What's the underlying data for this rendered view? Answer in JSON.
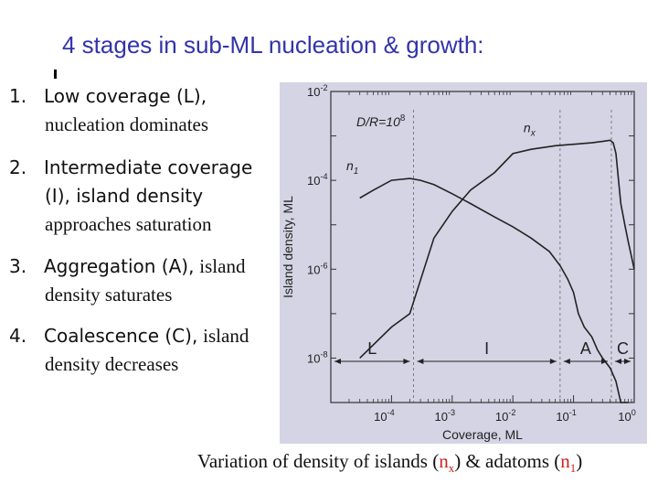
{
  "slide": {
    "title": "4 stages in sub-ML nucleation & growth:",
    "items": [
      {
        "num": "1.",
        "head": "Low coverage (L),",
        "rest": "nucleation dominates",
        "rest2": ""
      },
      {
        "num": "2.",
        "head": "Intermediate coverage",
        "rest": "(I), island density",
        "rest2": "approaches saturation"
      },
      {
        "num": "3.",
        "head": "Aggregation (A),",
        "rest": "island",
        "rest2": "density saturates"
      },
      {
        "num": "4.",
        "head": "Coalescence (C),",
        "rest": "island",
        "rest2": "density decreases"
      }
    ],
    "caption": {
      "pre": "Variation of density of islands (",
      "nx_base": "n",
      "nx_sub": "x",
      "mid": ") & adatoms (",
      "n1_base": "n",
      "n1_sub": "1",
      "post": ")"
    }
  },
  "chart_data": {
    "type": "line",
    "xlabel": "Coverage,  ML",
    "ylabel": "Island density,  ML",
    "x_scale": "log",
    "y_scale": "log",
    "xlim": [
      1e-05,
      1
    ],
    "ylim": [
      1e-09,
      0.01
    ],
    "x_ticks": [
      {
        "base": "10",
        "exp": "-4",
        "value": 0.0001
      },
      {
        "base": "10",
        "exp": "-3",
        "value": 0.001
      },
      {
        "base": "10",
        "exp": "-2",
        "value": 0.01
      },
      {
        "base": "10",
        "exp": "-1",
        "value": 0.1
      },
      {
        "base": "10",
        "exp": "0",
        "value": 1
      }
    ],
    "y_ticks": [
      {
        "base": "10",
        "exp": "-2",
        "value": 0.01
      },
      {
        "base": "10",
        "exp": "-4",
        "value": 0.0001
      },
      {
        "base": "10",
        "exp": "-6",
        "value": 1e-06
      },
      {
        "base": "10",
        "exp": "-8",
        "value": 1e-08
      }
    ],
    "annotation": {
      "label": "D/R=10",
      "exp": "8"
    },
    "series": [
      {
        "name": "n",
        "sub": "x",
        "color": "#222222",
        "x": [
          3e-05,
          0.0001,
          0.0002,
          0.0005,
          0.001,
          0.002,
          0.005,
          0.01,
          0.02,
          0.05,
          0.1,
          0.2,
          0.3,
          0.4,
          0.45,
          0.5,
          0.55,
          0.6,
          0.7,
          0.8,
          1
        ],
        "y": [
          1e-08,
          5e-08,
          1e-07,
          5e-06,
          2e-05,
          6e-05,
          0.00015,
          0.0004,
          0.0005,
          0.0006,
          0.00065,
          0.0007,
          0.00075,
          0.0008,
          0.0007,
          0.0004,
          0.0001,
          3e-05,
          1e-05,
          4e-06,
          1e-06
        ]
      },
      {
        "name": "n",
        "sub": "1",
        "color": "#222222",
        "x": [
          3e-05,
          5e-05,
          0.0001,
          0.0002,
          0.0003,
          0.0005,
          0.001,
          0.002,
          0.005,
          0.01,
          0.02,
          0.04,
          0.06,
          0.08,
          0.1,
          0.12,
          0.15,
          0.2,
          0.25,
          0.3,
          0.4,
          0.5,
          0.6,
          0.7,
          0.8
        ],
        "y": [
          4e-05,
          6e-05,
          0.0001,
          0.00011,
          0.0001,
          8e-05,
          5e-05,
          3e-05,
          1.5e-05,
          9e-06,
          5e-06,
          2.5e-06,
          1.2e-06,
          6e-07,
          3e-07,
          1e-07,
          5e-08,
          3e-08,
          1.5e-08,
          1e-08,
          6e-09,
          3e-09,
          1e-09,
          1e-09,
          1e-09
        ]
      }
    ],
    "stages": [
      {
        "label": "L",
        "from": 1e-05,
        "to": 0.00023
      },
      {
        "label": "I",
        "from": 0.00023,
        "to": 0.06
      },
      {
        "label": "A",
        "from": 0.06,
        "to": 0.42
      },
      {
        "label": "C",
        "from": 0.42,
        "to": 1
      }
    ]
  }
}
